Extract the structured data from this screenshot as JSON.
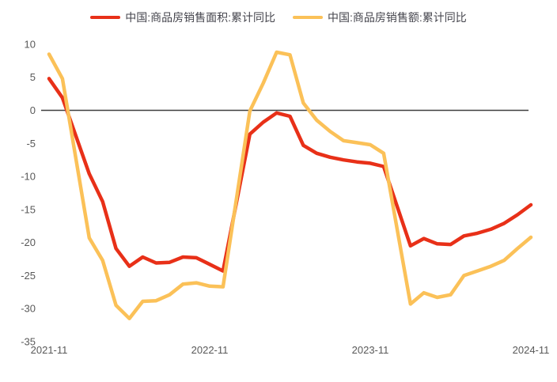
{
  "chart_data": {
    "type": "line",
    "title": "",
    "xlabel": "",
    "ylabel": "",
    "x": [
      "2021-11",
      "2021-12",
      "2022-02",
      "2022-03",
      "2022-04",
      "2022-05",
      "2022-06",
      "2022-07",
      "2022-08",
      "2022-09",
      "2022-10",
      "2022-11",
      "2022-12",
      "2023-02",
      "2023-03",
      "2023-04",
      "2023-05",
      "2023-06",
      "2023-07",
      "2023-08",
      "2023-09",
      "2023-10",
      "2023-11",
      "2023-12",
      "2024-02",
      "2024-03",
      "2024-04",
      "2024-05",
      "2024-06",
      "2024-07",
      "2024-08",
      "2024-09",
      "2024-10",
      "2024-11"
    ],
    "series": [
      {
        "name": "中国:商品房销售面积:累计同比",
        "color": "#e83018",
        "values": [
          4.8,
          1.9,
          -9.6,
          -13.8,
          -20.9,
          -23.6,
          -22.2,
          -23.1,
          -23.0,
          -22.2,
          -22.3,
          -23.3,
          -24.3,
          -3.6,
          -1.8,
          -0.4,
          -0.9,
          -5.3,
          -6.5,
          -7.1,
          -7.5,
          -7.8,
          -8.0,
          -8.5,
          -20.5,
          -19.4,
          -20.2,
          -20.3,
          -19.0,
          -18.6,
          -18.0,
          -17.1,
          -15.8,
          -14.3
        ]
      },
      {
        "name": "中国:商品房销售额:累计同比",
        "color": "#fbc158",
        "values": [
          8.5,
          4.8,
          -19.3,
          -22.7,
          -29.5,
          -31.5,
          -28.9,
          -28.8,
          -27.9,
          -26.3,
          -26.1,
          -26.6,
          -26.7,
          -0.1,
          4.1,
          8.8,
          8.4,
          1.1,
          -1.5,
          -3.2,
          -4.6,
          -4.9,
          -5.2,
          -6.5,
          -29.3,
          -27.6,
          -28.3,
          -27.9,
          -25.0,
          -24.3,
          -23.6,
          -22.7,
          -20.9,
          -19.2
        ]
      }
    ],
    "ylim": [
      -35,
      10
    ],
    "y_ticks": [
      10,
      5,
      0,
      -5,
      -10,
      -15,
      -20,
      -25,
      -30,
      -35
    ],
    "x_ticks": [
      "2021-11",
      "2022-11",
      "2023-11",
      "2024-11"
    ],
    "grid": "none",
    "zero_line": true,
    "legend_position": "top-center"
  }
}
